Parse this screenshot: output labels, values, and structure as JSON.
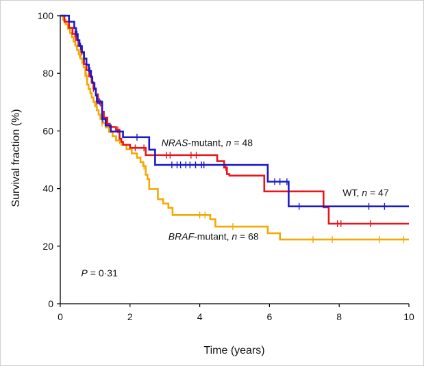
{
  "chart_data": {
    "type": "line",
    "title": "",
    "xlabel": "Time (years)",
    "ylabel": "Survival fraction (%)",
    "xlim": [
      0,
      10
    ],
    "ylim": [
      0,
      100
    ],
    "xticks": [
      0,
      2,
      4,
      6,
      8,
      10
    ],
    "yticks": [
      0,
      20,
      40,
      60,
      80,
      100
    ],
    "grid": false,
    "series": [
      {
        "name": "BRAF-mutant",
        "color": "#f5a800",
        "steps": [
          [
            0,
            100
          ],
          [
            0.08,
            98.5
          ],
          [
            0.15,
            97
          ],
          [
            0.22,
            95.5
          ],
          [
            0.28,
            94
          ],
          [
            0.33,
            92.5
          ],
          [
            0.38,
            91
          ],
          [
            0.43,
            89.6
          ],
          [
            0.48,
            88.1
          ],
          [
            0.53,
            86.6
          ],
          [
            0.58,
            85.1
          ],
          [
            0.63,
            83.6
          ],
          [
            0.67,
            82.1
          ],
          [
            0.72,
            79.1
          ],
          [
            0.77,
            76.1
          ],
          [
            0.81,
            74.6
          ],
          [
            0.86,
            73.1
          ],
          [
            0.9,
            71.6
          ],
          [
            0.95,
            70.1
          ],
          [
            1.0,
            68.6
          ],
          [
            1.05,
            67.2
          ],
          [
            1.1,
            65.7
          ],
          [
            1.15,
            64.2
          ],
          [
            1.2,
            62.7
          ],
          [
            1.3,
            61.2
          ],
          [
            1.4,
            59.7
          ],
          [
            1.5,
            58.2
          ],
          [
            1.6,
            56.7
          ],
          [
            1.75,
            55.2
          ],
          [
            1.9,
            53.7
          ],
          [
            2.05,
            52.2
          ],
          [
            2.2,
            50.7
          ],
          [
            2.3,
            49.2
          ],
          [
            2.38,
            47.8
          ],
          [
            2.45,
            44.8
          ],
          [
            2.5,
            43.3
          ],
          [
            2.55,
            39.8
          ],
          [
            2.8,
            36.3
          ],
          [
            2.95,
            34.8
          ],
          [
            3.1,
            33.3
          ],
          [
            3.22,
            30.8
          ],
          [
            4.3,
            29.3
          ],
          [
            4.45,
            26.8
          ],
          [
            5.95,
            24.5
          ],
          [
            6.3,
            22.3
          ],
          [
            10,
            22.3
          ]
        ],
        "censored": [
          0.55,
          0.75,
          1.2,
          1.7,
          2.4,
          4.0,
          4.15,
          4.95,
          7.25,
          7.8,
          9.15,
          9.85
        ]
      },
      {
        "name": "NRAS-mutant",
        "color": "#e8151b",
        "steps": [
          [
            0,
            100
          ],
          [
            0.12,
            97.9
          ],
          [
            0.25,
            95.8
          ],
          [
            0.35,
            93.7
          ],
          [
            0.45,
            91.6
          ],
          [
            0.52,
            89.5
          ],
          [
            0.6,
            87.4
          ],
          [
            0.68,
            83.2
          ],
          [
            0.75,
            81.1
          ],
          [
            0.83,
            79
          ],
          [
            0.9,
            76.9
          ],
          [
            0.95,
            74.8
          ],
          [
            1.02,
            72.7
          ],
          [
            1.08,
            69.7
          ],
          [
            1.2,
            66.7
          ],
          [
            1.25,
            64.6
          ],
          [
            1.35,
            62.5
          ],
          [
            1.42,
            61.4
          ],
          [
            1.6,
            60.4
          ],
          [
            1.7,
            57.3
          ],
          [
            1.75,
            56.2
          ],
          [
            1.8,
            55.2
          ],
          [
            2.0,
            54.1
          ],
          [
            2.45,
            51.6
          ],
          [
            4.5,
            49.5
          ],
          [
            4.7,
            47.3
          ],
          [
            4.78,
            45
          ],
          [
            4.85,
            44.5
          ],
          [
            5.85,
            39
          ],
          [
            7.55,
            33.5
          ],
          [
            7.7,
            27.8
          ],
          [
            10,
            27.8
          ]
        ],
        "censored": [
          0.42,
          0.62,
          0.95,
          1.15,
          1.65,
          2.15,
          2.4,
          3.05,
          3.15,
          3.75,
          3.9,
          4.75,
          7.95,
          8.05,
          8.9
        ]
      },
      {
        "name": "WT",
        "color": "#1a1aca",
        "steps": [
          [
            0,
            100
          ],
          [
            0.25,
            97.9
          ],
          [
            0.4,
            95.7
          ],
          [
            0.45,
            93.6
          ],
          [
            0.5,
            91.5
          ],
          [
            0.55,
            89.4
          ],
          [
            0.62,
            87.2
          ],
          [
            0.68,
            85.1
          ],
          [
            0.75,
            83
          ],
          [
            0.82,
            80.9
          ],
          [
            0.88,
            78.7
          ],
          [
            0.92,
            76.6
          ],
          [
            0.98,
            74.5
          ],
          [
            1.02,
            72.3
          ],
          [
            1.05,
            70.2
          ],
          [
            1.2,
            64.1
          ],
          [
            1.3,
            61.9
          ],
          [
            1.45,
            59.8
          ],
          [
            1.8,
            57.8
          ],
          [
            2.55,
            53.5
          ],
          [
            2.72,
            48.2
          ],
          [
            5.95,
            42.4
          ],
          [
            6.55,
            33.8
          ],
          [
            10,
            33.8
          ]
        ],
        "censored": [
          0.48,
          0.58,
          0.68,
          0.85,
          1.05,
          1.12,
          1.22,
          2.2,
          3.2,
          3.35,
          3.45,
          3.6,
          3.72,
          3.88,
          4.05,
          4.12,
          6.15,
          6.3,
          6.5,
          6.85,
          8.85,
          9.3
        ]
      }
    ],
    "labels": [
      {
        "series": "NRAS-mutant",
        "gene": "NRAS",
        "suffix": "-mutant, ",
        "n_sym": "n",
        "n_text": " = 48",
        "x": 2.9,
        "y": 54.8
      },
      {
        "series": "WT",
        "gene": "",
        "suffix": "WT, ",
        "n_sym": "n",
        "n_text": " = 47",
        "x": 8.1,
        "y": 37.4
      },
      {
        "series": "BRAF-mutant",
        "gene": "BRAF",
        "suffix": "-mutant, ",
        "n_sym": "n",
        "n_text": " = 68",
        "x": 3.1,
        "y": 22.2
      }
    ],
    "annotation": {
      "p_sym": "P",
      "p_text": " = 0·31",
      "x": 0.6,
      "y": 9.5
    }
  }
}
